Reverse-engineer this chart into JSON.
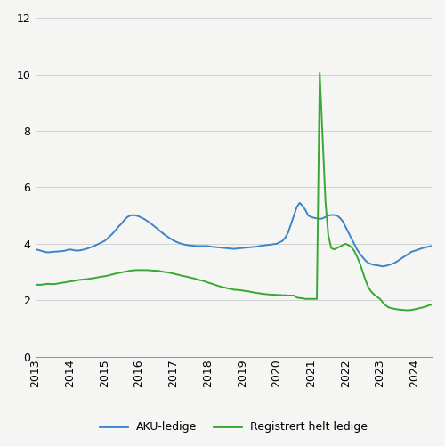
{
  "xlim_start": 2013.0,
  "xlim_end": 2024.5,
  "ylim_bottom": 0,
  "ylim_top": 12,
  "yticks": [
    0,
    2,
    4,
    6,
    8,
    10,
    12
  ],
  "xtick_years": [
    2013,
    2014,
    2015,
    2016,
    2017,
    2018,
    2019,
    2020,
    2021,
    2022,
    2023,
    2024
  ],
  "aku_color": "#3d85c8",
  "reg_color": "#38a832",
  "background_color": "#f5f5f3",
  "legend_label_aku": "AKU-ledige",
  "legend_label_reg": "Registrert helt ledige",
  "aku_start_year": 2013,
  "reg_start_year": 2013,
  "aku_data": [
    3.8,
    3.78,
    3.75,
    3.72,
    3.7,
    3.7,
    3.72,
    3.72,
    3.73,
    3.74,
    3.75,
    3.78,
    3.8,
    3.78,
    3.76,
    3.76,
    3.78,
    3.8,
    3.83,
    3.87,
    3.9,
    3.95,
    4.0,
    4.05,
    4.1,
    4.18,
    4.28,
    4.38,
    4.5,
    4.62,
    4.72,
    4.85,
    4.95,
    5.0,
    5.02,
    5.0,
    4.97,
    4.92,
    4.87,
    4.8,
    4.73,
    4.65,
    4.57,
    4.48,
    4.4,
    4.32,
    4.25,
    4.18,
    4.12,
    4.07,
    4.03,
    4.0,
    3.97,
    3.95,
    3.94,
    3.93,
    3.92,
    3.92,
    3.92,
    3.92,
    3.92,
    3.9,
    3.89,
    3.88,
    3.87,
    3.86,
    3.85,
    3.84,
    3.83,
    3.82,
    3.83,
    3.84,
    3.85,
    3.86,
    3.87,
    3.88,
    3.89,
    3.9,
    3.92,
    3.93,
    3.95,
    3.96,
    3.97,
    3.99,
    4.0,
    4.05,
    4.1,
    4.22,
    4.4,
    4.7,
    5.0,
    5.3,
    5.45,
    5.35,
    5.2,
    5.0,
    4.95,
    4.92,
    4.9,
    4.88,
    4.9,
    4.95,
    5.0,
    5.02,
    5.02,
    5.0,
    4.92,
    4.8,
    4.6,
    4.4,
    4.2,
    4.0,
    3.8,
    3.65,
    3.52,
    3.4,
    3.32,
    3.28,
    3.25,
    3.24,
    3.22,
    3.2,
    3.22,
    3.25,
    3.28,
    3.32,
    3.38,
    3.45,
    3.52,
    3.58,
    3.65,
    3.72,
    3.75,
    3.78,
    3.82,
    3.85,
    3.88,
    3.9,
    3.92,
    3.93,
    3.94,
    3.92,
    3.9,
    3.9
  ],
  "reg_data": [
    2.55,
    2.55,
    2.55,
    2.57,
    2.58,
    2.58,
    2.57,
    2.58,
    2.6,
    2.62,
    2.63,
    2.65,
    2.67,
    2.68,
    2.7,
    2.72,
    2.73,
    2.74,
    2.75,
    2.77,
    2.78,
    2.8,
    2.82,
    2.84,
    2.85,
    2.87,
    2.9,
    2.92,
    2.95,
    2.97,
    2.99,
    3.01,
    3.03,
    3.05,
    3.06,
    3.07,
    3.07,
    3.07,
    3.07,
    3.07,
    3.06,
    3.05,
    3.05,
    3.04,
    3.02,
    3.0,
    2.99,
    2.97,
    2.95,
    2.92,
    2.9,
    2.87,
    2.85,
    2.83,
    2.8,
    2.78,
    2.75,
    2.72,
    2.7,
    2.67,
    2.63,
    2.6,
    2.57,
    2.53,
    2.5,
    2.47,
    2.45,
    2.42,
    2.4,
    2.38,
    2.37,
    2.36,
    2.35,
    2.33,
    2.32,
    2.3,
    2.28,
    2.26,
    2.25,
    2.23,
    2.22,
    2.21,
    2.2,
    2.2,
    2.19,
    2.19,
    2.18,
    2.18,
    2.17,
    2.17,
    2.17,
    2.1,
    2.08,
    2.07,
    2.05,
    2.05,
    2.05,
    2.05,
    2.05,
    10.05,
    7.8,
    5.5,
    4.3,
    3.85,
    3.8,
    3.85,
    3.9,
    3.95,
    4.0,
    3.95,
    3.88,
    3.75,
    3.55,
    3.3,
    3.0,
    2.7,
    2.45,
    2.3,
    2.2,
    2.12,
    2.05,
    1.92,
    1.82,
    1.75,
    1.72,
    1.7,
    1.68,
    1.67,
    1.66,
    1.65,
    1.65,
    1.66,
    1.68,
    1.7,
    1.73,
    1.75,
    1.78,
    1.82,
    1.85,
    1.88,
    1.9,
    1.92,
    1.93,
    1.93
  ]
}
